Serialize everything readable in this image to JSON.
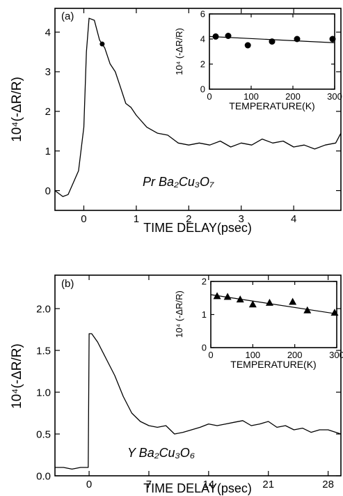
{
  "chart_data": [
    {
      "id": "a",
      "type": "line",
      "panel_label": "(a)",
      "sample_label": "Pr Ba₂Cu₃O₇",
      "xlabel": "TIME DELAY(psec)",
      "ylabel": "10⁴(-ΔR/R)",
      "xlim": [
        -0.55,
        4.9
      ],
      "ylim": [
        -0.5,
        4.6
      ],
      "xticks": [
        0,
        1,
        2,
        3,
        4
      ],
      "xtick_labels": [
        "0",
        "1",
        "2",
        "3",
        "4"
      ],
      "yticks": [
        0,
        1,
        2,
        3,
        4
      ],
      "ytick_labels": [
        "0",
        "1",
        "2",
        "3",
        "4"
      ],
      "series": [
        {
          "x": [
            -0.55,
            -0.4,
            -0.3,
            -0.2,
            -0.1,
            0.0,
            0.05,
            0.1,
            0.2,
            0.3,
            0.4,
            0.5,
            0.6,
            0.7,
            0.8,
            0.9,
            1.0,
            1.2,
            1.4,
            1.6,
            1.8,
            2.0,
            2.2,
            2.4,
            2.6,
            2.8,
            3.0,
            3.2,
            3.4,
            3.6,
            3.8,
            4.0,
            4.2,
            4.4,
            4.6,
            4.8,
            4.9
          ],
          "y": [
            0.0,
            -0.15,
            -0.1,
            0.2,
            0.5,
            1.6,
            3.5,
            4.35,
            4.3,
            3.8,
            3.6,
            3.2,
            3.0,
            2.6,
            2.2,
            2.1,
            1.9,
            1.6,
            1.45,
            1.4,
            1.2,
            1.15,
            1.2,
            1.15,
            1.25,
            1.1,
            1.2,
            1.15,
            1.3,
            1.2,
            1.25,
            1.1,
            1.15,
            1.05,
            1.15,
            1.2,
            1.45
          ]
        }
      ],
      "inset": {
        "type": "scatter",
        "xlabel": "TEMPERATURE(K)",
        "ylabel": "10⁴ (-ΔR/R)",
        "xlim": [
          0,
          300
        ],
        "ylim": [
          0,
          6
        ],
        "xticks": [
          0,
          100,
          200,
          300
        ],
        "xtick_labels": [
          "0",
          "100",
          "200",
          "300"
        ],
        "yticks": [
          0,
          2,
          4,
          6
        ],
        "ytick_labels": [
          "0",
          "2",
          "4",
          "6"
        ],
        "marker": "circle",
        "points": [
          [
            15,
            4.2
          ],
          [
            45,
            4.25
          ],
          [
            92,
            3.5
          ],
          [
            150,
            3.8
          ],
          [
            210,
            4.0
          ],
          [
            295,
            4.0
          ]
        ],
        "fit": [
          [
            0,
            4.2
          ],
          [
            300,
            3.7
          ]
        ]
      }
    },
    {
      "id": "b",
      "type": "line",
      "panel_label": "(b)",
      "sample_label": "Y Ba₂Cu₃O₆",
      "xlabel": "TIME DELAY(psec)",
      "ylabel": "10⁴(-ΔR/R)",
      "xlim": [
        -4,
        29.5
      ],
      "ylim": [
        0,
        2.4
      ],
      "xticks": [
        0,
        7,
        14,
        21,
        28
      ],
      "xtick_labels": [
        "0",
        "7",
        "14",
        "21",
        "28"
      ],
      "yticks": [
        0,
        0.5,
        1.0,
        1.5,
        2.0
      ],
      "ytick_labels": [
        "0.0",
        "0.5",
        "1.0",
        "1.5",
        "2.0"
      ],
      "series": [
        {
          "x": [
            -4,
            -3,
            -2,
            -1,
            -0.1,
            0.0,
            0.3,
            1,
            2,
            3,
            4,
            5,
            6,
            7,
            8,
            9,
            10,
            11,
            12,
            13,
            14,
            15,
            16,
            17,
            18,
            19,
            20,
            21,
            22,
            23,
            24,
            25,
            26,
            27,
            28,
            29.5
          ],
          "y": [
            0.1,
            0.1,
            0.08,
            0.1,
            0.1,
            1.7,
            1.7,
            1.6,
            1.4,
            1.2,
            0.95,
            0.75,
            0.65,
            0.6,
            0.58,
            0.6,
            0.5,
            0.52,
            0.55,
            0.58,
            0.62,
            0.6,
            0.62,
            0.64,
            0.66,
            0.6,
            0.62,
            0.65,
            0.58,
            0.6,
            0.55,
            0.57,
            0.52,
            0.55,
            0.55,
            0.5
          ]
        }
      ],
      "inset": {
        "type": "scatter",
        "xlabel": "TEMPERATURE(K)",
        "ylabel": "10⁴ (-ΔR/R)",
        "xlim": [
          0,
          300
        ],
        "ylim": [
          0,
          2
        ],
        "xticks": [
          0,
          100,
          200,
          300
        ],
        "xtick_labels": [
          "0",
          "100",
          "200",
          "300"
        ],
        "yticks": [
          0,
          1,
          2
        ],
        "ytick_labels": [
          "0",
          "1",
          "2"
        ],
        "marker": "triangle",
        "points": [
          [
            15,
            1.55
          ],
          [
            40,
            1.53
          ],
          [
            70,
            1.45
          ],
          [
            100,
            1.3
          ],
          [
            140,
            1.35
          ],
          [
            195,
            1.38
          ],
          [
            230,
            1.12
          ],
          [
            295,
            1.05
          ]
        ],
        "fit": [
          [
            0,
            1.6
          ],
          [
            300,
            1.02
          ]
        ]
      }
    }
  ]
}
